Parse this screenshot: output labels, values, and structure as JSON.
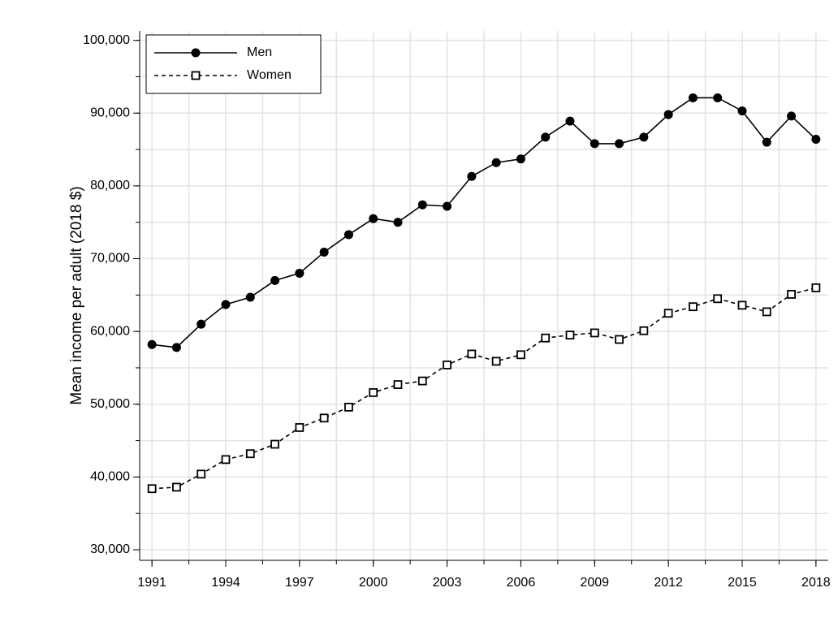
{
  "chart_data": {
    "type": "line",
    "y_label": "Mean income per adult (2018 $)",
    "x": [
      1991,
      1992,
      1993,
      1994,
      1995,
      1996,
      1997,
      1998,
      1999,
      2000,
      2001,
      2002,
      2003,
      2004,
      2005,
      2006,
      2007,
      2008,
      2009,
      2010,
      2011,
      2012,
      2013,
      2014,
      2015,
      2016,
      2017,
      2018
    ],
    "series": [
      {
        "name": "Men",
        "color": "#000000",
        "marker": "circle",
        "dashed": false,
        "values": [
          58200,
          57800,
          61000,
          63700,
          64700,
          67000,
          68000,
          70900,
          73300,
          75500,
          75000,
          77400,
          77200,
          81300,
          83200,
          83700,
          86700,
          88900,
          85800,
          85800,
          86700,
          89800,
          92100,
          92100,
          90300,
          86000,
          89600,
          86400
        ]
      },
      {
        "name": "Women",
        "color": "#000000",
        "marker": "square",
        "dashed": true,
        "values": [
          38400,
          38600,
          40400,
          42400,
          43200,
          44500,
          46800,
          48100,
          49600,
          51600,
          52700,
          53200,
          55400,
          56900,
          55900,
          56800,
          59100,
          59500,
          59800,
          58900,
          60100,
          62500,
          63400,
          64500,
          63600,
          62700,
          65100,
          66000
        ]
      }
    ],
    "xlim": [
      1990.5,
      2018.5
    ],
    "ylim": [
      28550,
      101300
    ],
    "xticks": [
      1991,
      1994,
      1997,
      2000,
      2003,
      2006,
      2009,
      2012,
      2015,
      2018
    ],
    "xgrid": [
      1991,
      1992.5,
      1994,
      1995.5,
      1997,
      1998.5,
      2000,
      2001.5,
      2003,
      2004.5,
      2006,
      2007.5,
      2009,
      2010.5,
      2012,
      2013.5,
      2015,
      2016.5,
      2018
    ],
    "yticks": [
      {
        "value": 30000,
        "label": "30,000"
      },
      {
        "value": 40000,
        "label": "40,000"
      },
      {
        "value": 50000,
        "label": "50,000"
      },
      {
        "value": 60000,
        "label": "60,000"
      },
      {
        "value": 70000,
        "label": "70,000"
      },
      {
        "value": 80000,
        "label": "80,000"
      },
      {
        "value": 90000,
        "label": "90,000"
      },
      {
        "value": 100000,
        "label": "100,000"
      }
    ],
    "ygrid": [
      30000,
      35000,
      40000,
      45000,
      50000,
      55000,
      60000,
      65000,
      70000,
      75000,
      80000,
      85000,
      90000,
      95000,
      100000
    ],
    "grid": true,
    "legend": "top-left"
  }
}
